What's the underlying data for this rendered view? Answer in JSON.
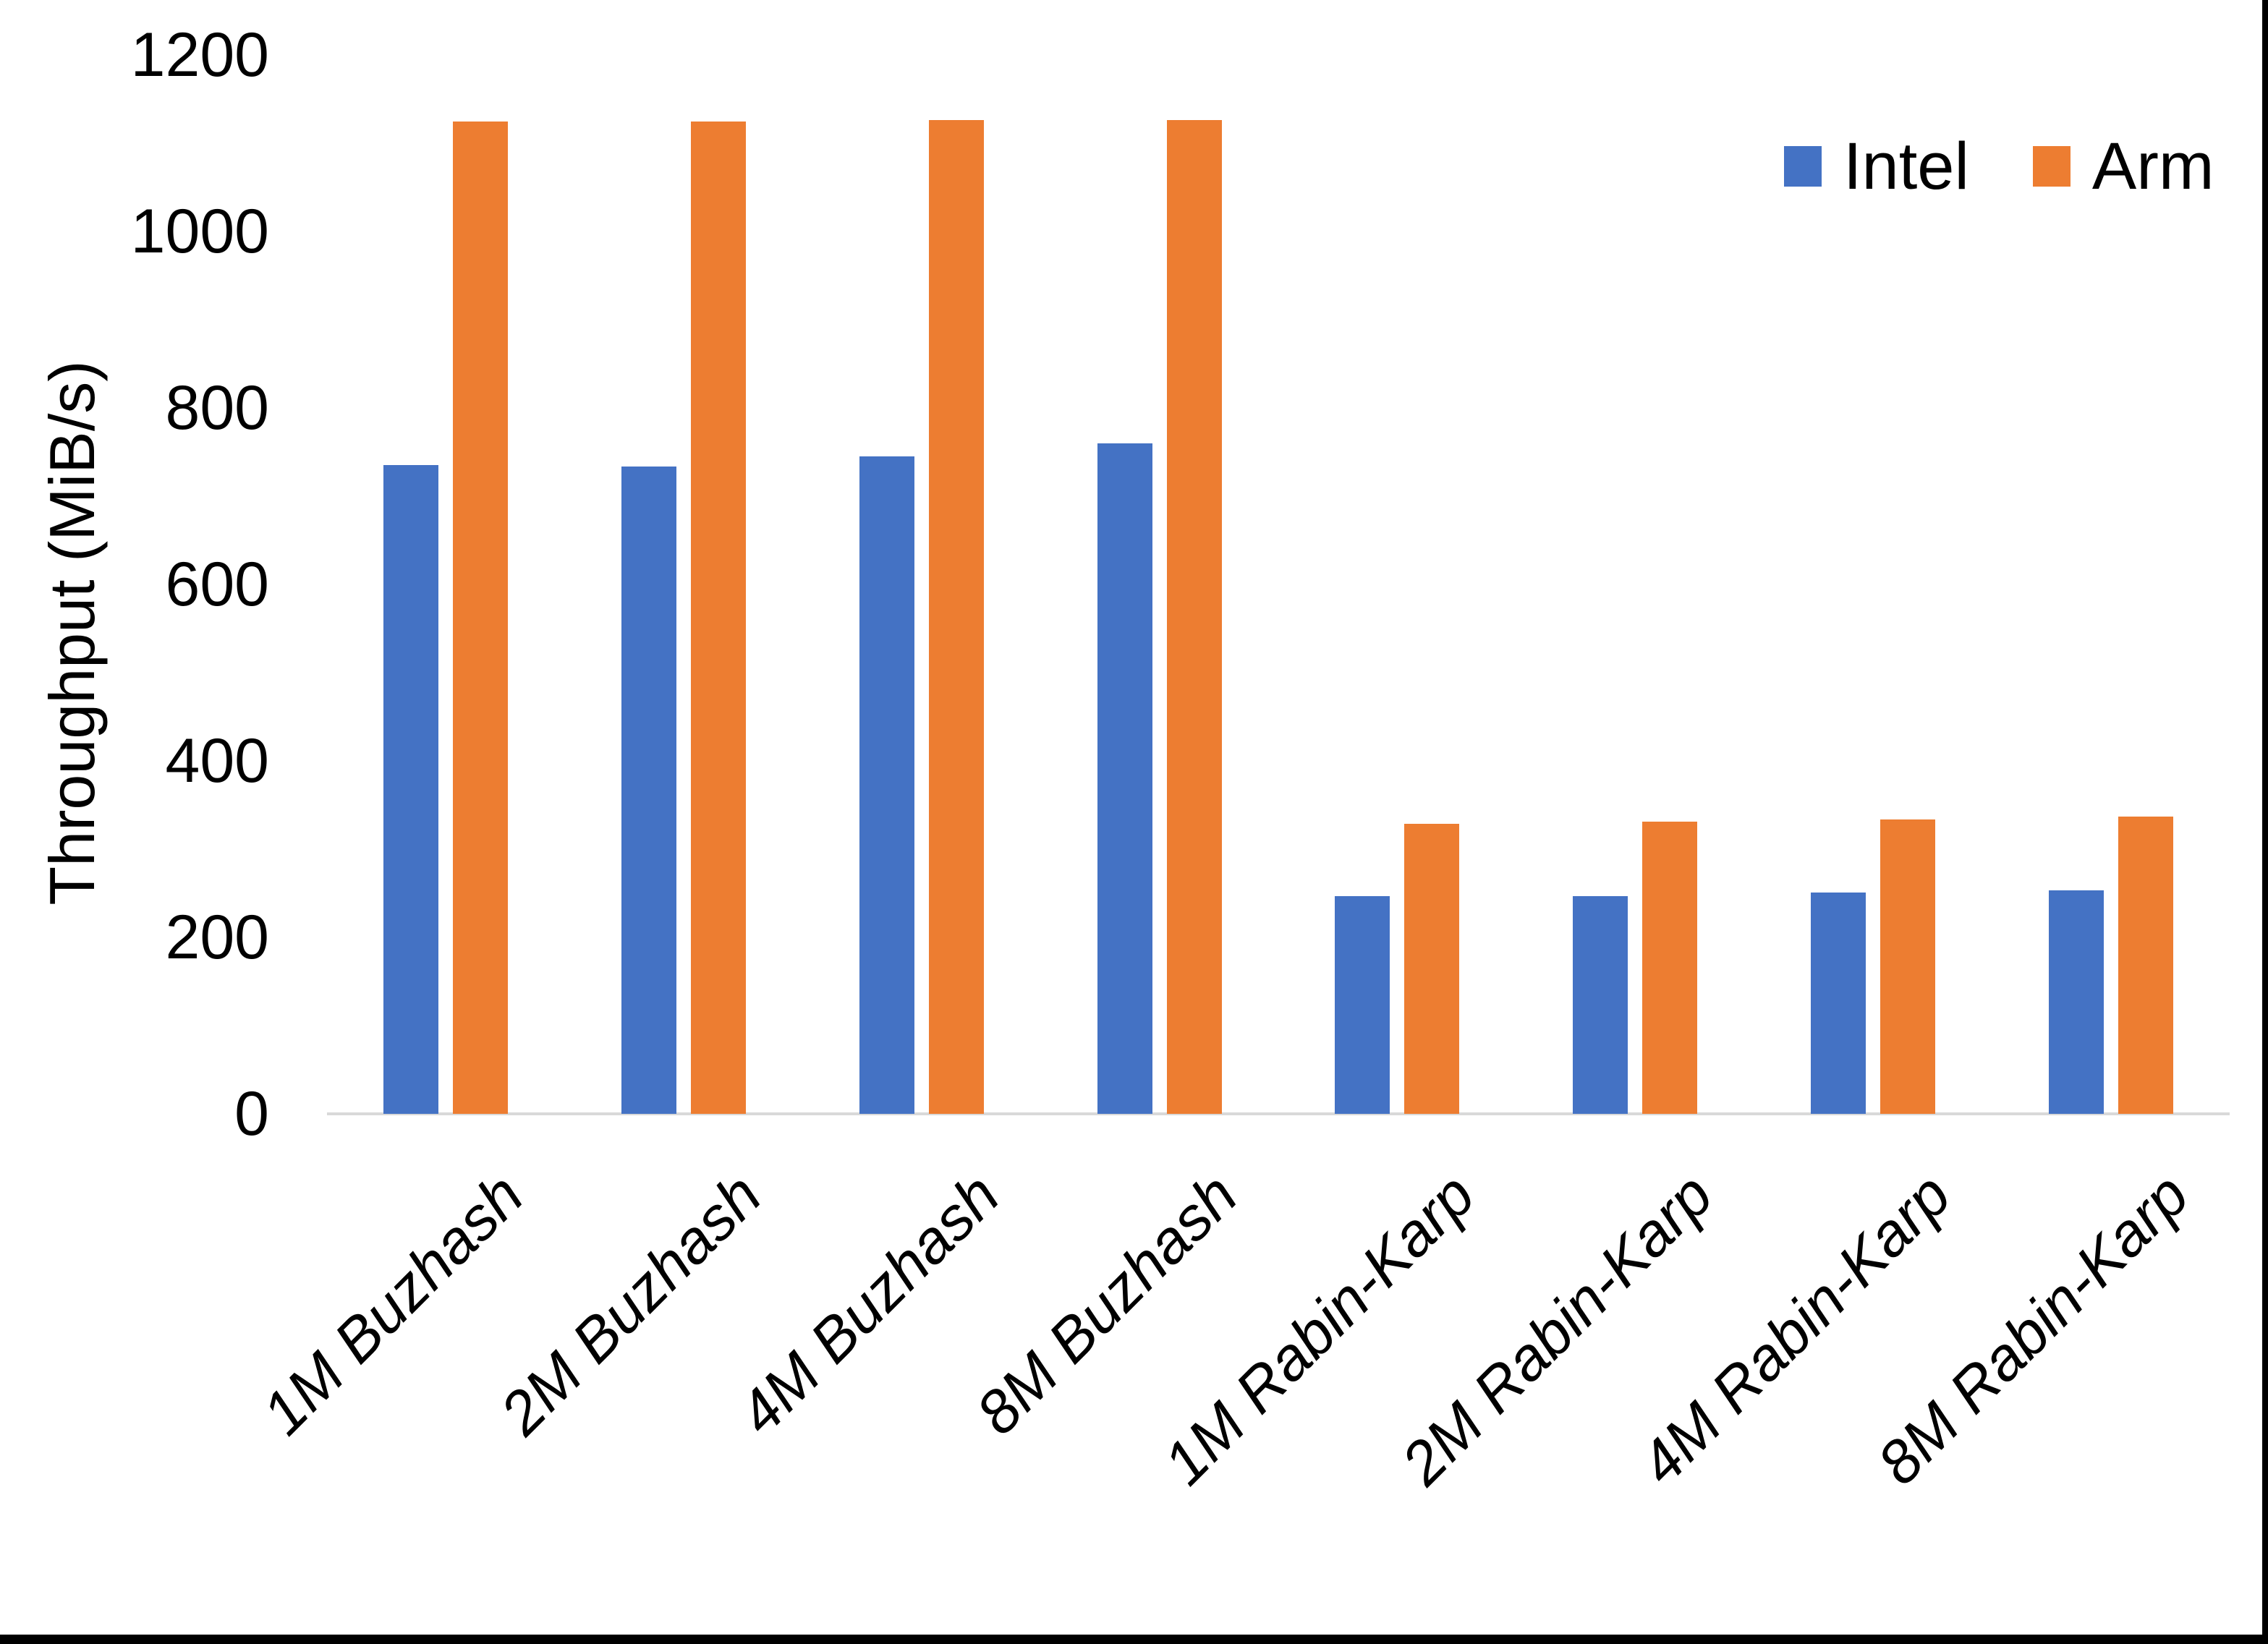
{
  "page": {
    "background": "#ffffff",
    "border_color": "#000000"
  },
  "axes": {
    "y_title": "Throughput (MiB/s)",
    "axis_line_color": "#D9D9D9",
    "text_color": "#000000"
  },
  "chart_data": {
    "type": "bar",
    "title": "",
    "xlabel": "",
    "ylabel": "Throughput (MiB/s)",
    "ylim": [
      0,
      1200
    ],
    "yticks": [
      0,
      200,
      400,
      600,
      800,
      1000,
      1200
    ],
    "grid": false,
    "legend_position": "top-right",
    "categories": [
      "1M Buzhash",
      "2M Buzhash",
      "4M Buzhash",
      "8M Buzhash",
      "1M Rabin-Karp",
      "2M Rabin-Karp",
      "4M Rabin-Karp",
      "8M Rabin-Karp"
    ],
    "series": [
      {
        "name": "Intel",
        "color": "#4472C4",
        "values": [
          735,
          734,
          745,
          760,
          247,
          247,
          251,
          253
        ]
      },
      {
        "name": "Arm",
        "color": "#ED7D31",
        "values": [
          1125,
          1125,
          1126,
          1126,
          329,
          331,
          334,
          337
        ]
      }
    ]
  }
}
